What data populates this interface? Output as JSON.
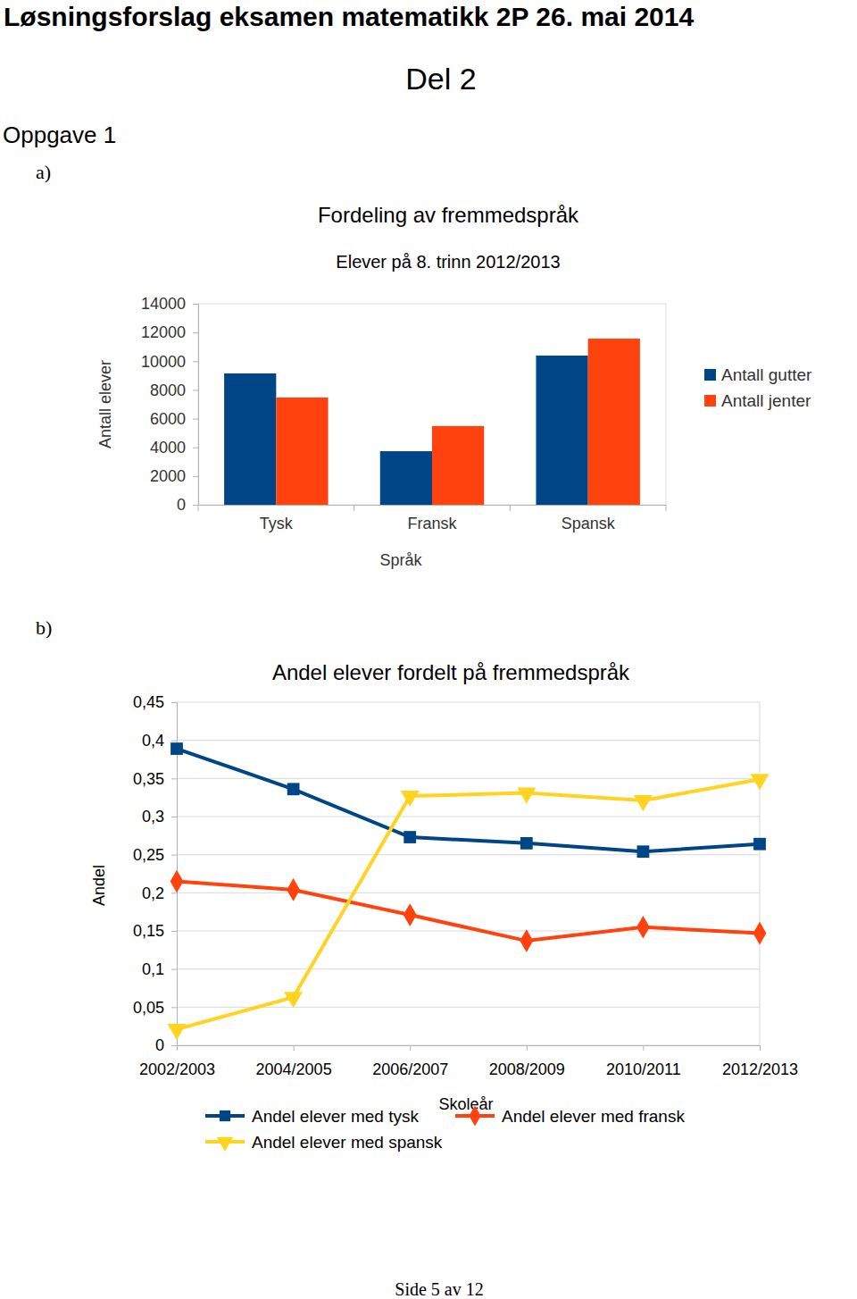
{
  "page": {
    "title": "Løsningsforslag eksamen matematikk 2P 26. mai 2014",
    "section": "Del 2",
    "task": "Oppgave 1",
    "parts": [
      "a)",
      "b)"
    ],
    "footer": "Side 5 av 12"
  },
  "chart_data": [
    {
      "type": "bar",
      "title": "Fordeling av fremmedspråk",
      "subtitle": "Elever på 8. trinn 2012/2013",
      "x_label": "Språk",
      "y_label": "Antall elever",
      "categories": [
        "Tysk",
        "Fransk",
        "Spansk"
      ],
      "series": [
        {
          "name": "Antall gutter",
          "color": "#004586",
          "values": [
            9150,
            3730,
            10390
          ]
        },
        {
          "name": "Antall jenter",
          "color": "#ff420e",
          "values": [
            7470,
            5480,
            11570
          ]
        }
      ],
      "ylim": [
        0,
        14000
      ],
      "yticks": [
        0,
        2000,
        4000,
        6000,
        8000,
        10000,
        12000,
        14000
      ],
      "grid": false,
      "legend": "right"
    },
    {
      "type": "line",
      "title": "Andel elever fordelt på fremmedspråk",
      "x_label": "Skoleår",
      "y_label": "Andel",
      "categories": [
        "2002/2003",
        "2004/2005",
        "2006/2007",
        "2008/2009",
        "2010/2011",
        "2012/2013"
      ],
      "series": [
        {
          "name": "Andel elever med tysk",
          "color": "#004586",
          "marker": "square",
          "values": [
            0.389,
            0.336,
            0.273,
            0.265,
            0.254,
            0.264
          ]
        },
        {
          "name": "Andel elever med fransk",
          "color": "#ff420e",
          "marker": "diamond",
          "values": [
            0.215,
            0.204,
            0.171,
            0.137,
            0.155,
            0.147
          ]
        },
        {
          "name": "Andel elever med spansk",
          "color": "#ffd320",
          "marker": "triangle-down",
          "values": [
            0.021,
            0.063,
            0.327,
            0.331,
            0.321,
            0.349
          ]
        }
      ],
      "ylim": [
        0,
        0.45
      ],
      "yticks": [
        0,
        {
          "value": 0.05,
          "label": "0,05"
        },
        {
          "value": 0.1,
          "label": "0,1"
        },
        {
          "value": 0.15,
          "label": "0,15"
        },
        {
          "value": 0.2,
          "label": "0,2"
        },
        {
          "value": 0.25,
          "label": "0,25"
        },
        {
          "value": 0.3,
          "label": "0,3"
        },
        {
          "value": 0.35,
          "label": "0,35"
        },
        {
          "value": 0.4,
          "label": "0,4"
        },
        {
          "value": 0.45,
          "label": "0,45"
        }
      ],
      "grid": true,
      "legend": "bottom"
    }
  ]
}
